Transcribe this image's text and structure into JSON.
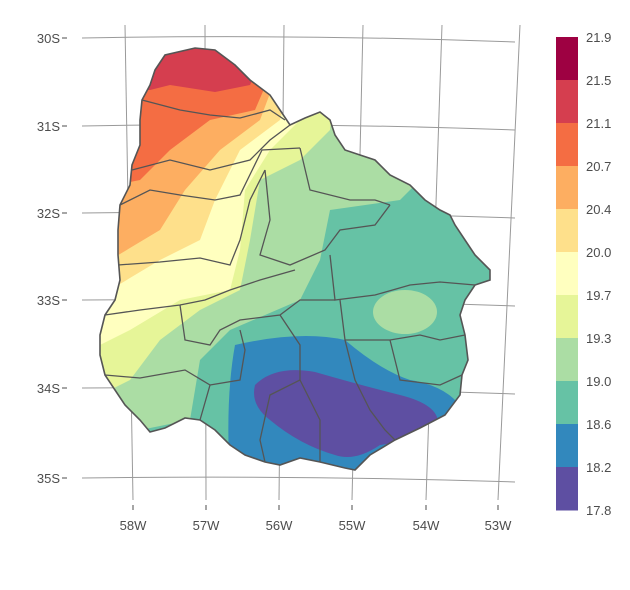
{
  "map": {
    "type": "filled-contour",
    "region": "Uruguay",
    "lat_labels": [
      "30S",
      "31S",
      "32S",
      "33S",
      "34S",
      "35S"
    ],
    "lon_labels": [
      "58W",
      "57W",
      "56W",
      "55W",
      "54W",
      "53W"
    ]
  },
  "legend": {
    "breaks": [
      "21.9",
      "21.5",
      "21.1",
      "20.7",
      "20.4",
      "20.0",
      "19.7",
      "19.3",
      "19.0",
      "18.6",
      "18.2",
      "17.8"
    ],
    "colors": [
      "#9e0142",
      "#d53e4f",
      "#f46d43",
      "#fdae61",
      "#fee08b",
      "#ffffbf",
      "#e6f598",
      "#abdda4",
      "#66c2a5",
      "#3288bd",
      "#5e4fa2"
    ]
  }
}
